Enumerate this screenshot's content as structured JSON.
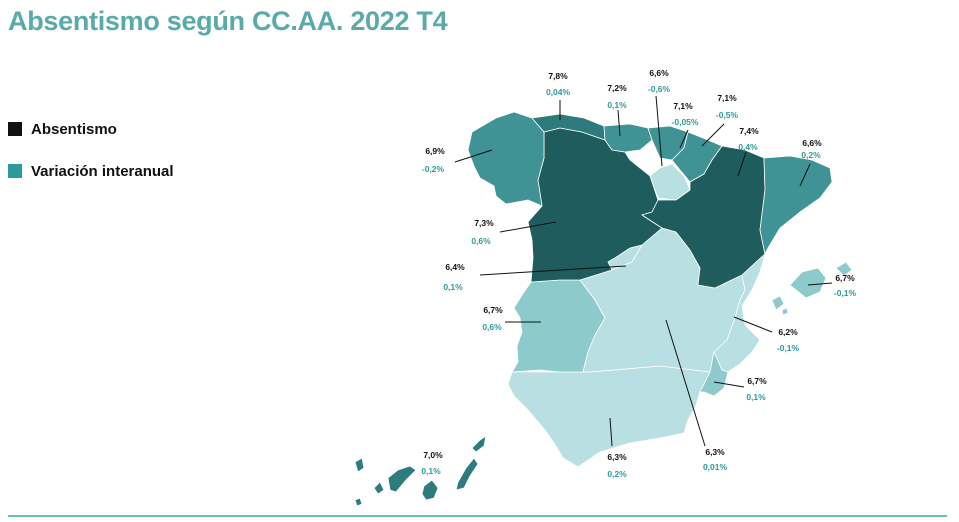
{
  "title": "Absentismo según CC.AA. 2022 T4",
  "legend": [
    {
      "label": "Absentismo",
      "color": "#111111"
    },
    {
      "label": "Variación interanual",
      "color": "#2c9a9a"
    }
  ],
  "colors": {
    "very_dark": "#1f5c5e",
    "dark": "#2e7b7e",
    "medium": "#3f9394",
    "light": "#8ccacc",
    "very_light": "#b8dfe1",
    "accent": "#5aaaa9",
    "variation_text": "#2c9a9a"
  },
  "regions": [
    {
      "name": "Galicia",
      "absentismo": "6,9%",
      "variacion": "-0,2%"
    },
    {
      "name": "Asturias",
      "absentismo": "7,8%",
      "variacion": "0,04%"
    },
    {
      "name": "Cantabria",
      "absentismo": "7,2%",
      "variacion": "0,1%"
    },
    {
      "name": "País Vasco",
      "absentismo": "6,6%",
      "variacion": "-0,6%"
    },
    {
      "name": "Navarra",
      "absentismo": "7,1%",
      "variacion": "-0,05%"
    },
    {
      "name": "La Rioja",
      "absentismo": "7,1%",
      "variacion": "-0,5%"
    },
    {
      "name": "Aragón",
      "absentismo": "7,4%",
      "variacion": "0,4%"
    },
    {
      "name": "Cataluña",
      "absentismo": "6,6%",
      "variacion": "0,2%"
    },
    {
      "name": "Castilla y León",
      "absentismo": "7,3%",
      "variacion": "0,6%"
    },
    {
      "name": "Madrid",
      "absentismo": "6,4%",
      "variacion": "0,1%"
    },
    {
      "name": "Extremadura",
      "absentismo": "6,7%",
      "variacion": "0,6%"
    },
    {
      "name": "Illes Balears",
      "absentismo": "6,7%",
      "variacion": "-0,1%"
    },
    {
      "name": "Comunitat Valenciana",
      "absentismo": "6,2%",
      "variacion": "-0,1%"
    },
    {
      "name": "Región de Murcia",
      "absentismo": "6,7%",
      "variacion": "0,1%"
    },
    {
      "name": "Castilla-La Mancha",
      "absentismo": "6,3%",
      "variacion": "0,01%"
    },
    {
      "name": "Andalucía",
      "absentismo": "6,3%",
      "variacion": "0,2%"
    },
    {
      "name": "Canarias",
      "absentismo": "7,0%",
      "variacion": "0,1%"
    }
  ]
}
